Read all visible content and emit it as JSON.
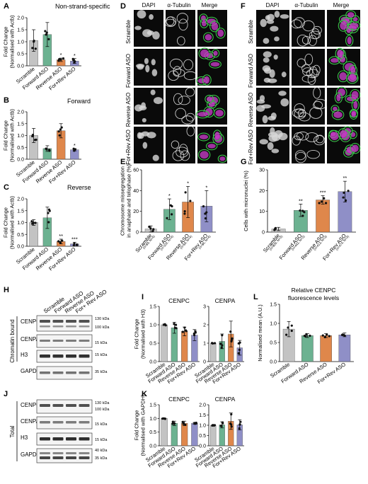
{
  "panels": {
    "A": {
      "letter": "A",
      "title": "Non-strand-specific",
      "ylabel": [
        "Fold Change",
        "(Normalised with Actb)"
      ],
      "yticks": [
        "0.0",
        "0.5",
        "1.0",
        "1.5",
        "2.0"
      ]
    },
    "B": {
      "letter": "B",
      "title": "Forward",
      "ylabel": [
        "Fold Change",
        "(Normalised with Actb)"
      ],
      "yticks": [
        "0.0",
        "0.5",
        "1.0",
        "1.5",
        "2.0"
      ]
    },
    "C": {
      "letter": "C",
      "title": "Reverse",
      "ylabel": [
        "Fold Change",
        "(Normalised with Actb)"
      ],
      "yticks": [
        "0.0",
        "0.5",
        "1.0",
        "1.5",
        "2.0"
      ]
    },
    "D": {
      "letter": "D",
      "cols": [
        "DAPI",
        "α-Tubulin",
        "Merge"
      ],
      "rows": [
        "Scramble",
        "Forward ASO",
        "Reverse ASO",
        "For+Rev ASO"
      ]
    },
    "E": {
      "letter": "E",
      "ylabel": [
        "Chromosome missegregation",
        "in anaphase and telophase (%)"
      ],
      "yticks": [
        "0",
        "20",
        "40",
        "60"
      ],
      "ns": [
        "(n=89, N=4)",
        "(n=102, N=4)",
        "(n=83, N=4)",
        "(n=86, N=4)"
      ]
    },
    "F": {
      "letter": "F",
      "cols": [
        "DAPI",
        "α-Tubulin",
        "Merge"
      ],
      "rows": [
        "Scramble",
        "Forward ASO",
        "Reverse ASO",
        "For+Rev ASO"
      ]
    },
    "G": {
      "letter": "G",
      "ylabel": [
        "Cells with micronuclei (%)"
      ],
      "yticks": [
        "0",
        "10",
        "20",
        "30"
      ],
      "ns": [
        "(n=805, N=3)",
        "(n=442, N=3)",
        "(n=413, N=3)",
        "(n=474, N=3)"
      ]
    },
    "H": {
      "letter": "H",
      "lanes": [
        "Scramble",
        "Forward ASO",
        "Reverse ASO",
        "For+ Rev ASO"
      ],
      "rowlabels": [
        "CENPC",
        "CENPA",
        "H3",
        "GAPDH"
      ],
      "group": "Chromatin bound",
      "kda": [
        "130 kDa",
        "100 kDa",
        "15 kDa",
        "15 kDa",
        "35 kDa"
      ]
    },
    "I": {
      "letter": "I",
      "ylabel": [
        "Fold Change",
        "(Normalised with H3)"
      ],
      "sub1": "CENPC",
      "sub2": "CENPA",
      "yticks1": [
        "0.0",
        "0.5",
        "1.0",
        "1.5"
      ],
      "yticks2": [
        "0",
        "1",
        "2",
        "3"
      ]
    },
    "J": {
      "letter": "J",
      "rowlabels": [
        "CENPC",
        "CENPA",
        "H3",
        "GAPDH"
      ],
      "group": "Total",
      "kda": [
        "130 kDa",
        "100 kDa",
        "15 kDa",
        "15 kDa",
        "40 kDa",
        "35 kDa"
      ]
    },
    "K": {
      "letter": "K",
      "ylabel": [
        "Fold Change",
        "(Normalised with GAPDH)"
      ],
      "sub1": "CENPC",
      "sub2": "CENPA",
      "yticks1": [
        "0.0",
        "0.5",
        "1.0",
        "1.5"
      ],
      "yticks2": [
        "0.0",
        "0.5",
        "1.0",
        "1.5",
        "2.0"
      ]
    },
    "L": {
      "letter": "L",
      "title": [
        "Relative CENPC",
        "fluorescence levels"
      ],
      "ylabel": [
        "Normalised mean (A.U.)"
      ],
      "yticks": [
        "0.0",
        "0.5",
        "1.0",
        "1.5"
      ]
    }
  },
  "categories": [
    "Scramble",
    "Forward ASO",
    "Reverse ASO",
    "For+Rev ASO"
  ],
  "sig": {
    "A": [
      "",
      "",
      "*",
      "*"
    ],
    "B": [
      "",
      "",
      "",
      "*"
    ],
    "C": [
      "",
      "",
      "**",
      "***"
    ],
    "E": [
      "",
      "*",
      "*",
      "*"
    ],
    "G": [
      "",
      "**",
      "***",
      "**"
    ]
  },
  "colors": {
    "scramble": "#b8b8b8",
    "forward": "#52a47e",
    "reverse": "#d9722b",
    "forrev": "#7b7bbd"
  },
  "chart_data": [
    {
      "id": "A",
      "type": "bar",
      "categories": [
        "Scramble",
        "Forward ASO",
        "Reverse ASO",
        "For+Rev ASO"
      ],
      "values": [
        1.05,
        1.3,
        0.25,
        0.2
      ],
      "errors": [
        0.45,
        0.5,
        0.07,
        0.1
      ],
      "ylim": [
        0,
        2.0
      ]
    },
    {
      "id": "B",
      "type": "bar",
      "categories": [
        "Scramble",
        "Forward ASO",
        "Reverse ASO",
        "For+Rev ASO"
      ],
      "values": [
        1.0,
        0.45,
        1.2,
        0.4
      ],
      "errors": [
        0.3,
        0.12,
        0.3,
        0.05
      ],
      "ylim": [
        0,
        2.0
      ]
    },
    {
      "id": "C",
      "type": "bar",
      "categories": [
        "Scramble",
        "Forward ASO",
        "Reverse ASO",
        "For+Rev ASO"
      ],
      "values": [
        1.0,
        1.2,
        0.2,
        0.1
      ],
      "errors": [
        0.12,
        0.45,
        0.1,
        0.07
      ],
      "ylim": [
        0,
        2.0
      ]
    },
    {
      "id": "E",
      "type": "bar",
      "categories": [
        "Scramble",
        "Forward ASO",
        "Reverse ASO",
        "For+Rev ASO"
      ],
      "values": [
        3,
        22,
        29,
        25
      ],
      "errors": [
        3,
        10,
        15,
        15
      ],
      "ylim": [
        0,
        60
      ]
    },
    {
      "id": "G",
      "type": "bar",
      "categories": [
        "Scramble",
        "Forward ASO",
        "Reverse ASO",
        "For+Rev ASO"
      ],
      "values": [
        1.5,
        10.5,
        15.5,
        19.5
      ],
      "errors": [
        0.8,
        3,
        2,
        5
      ],
      "ylim": [
        0,
        30
      ]
    },
    {
      "id": "I-CENPC",
      "type": "bar",
      "categories": [
        "Scramble",
        "Forward ASO",
        "Reverse ASO",
        "For+Rev ASO"
      ],
      "values": [
        1.0,
        0.92,
        0.82,
        0.72
      ],
      "errors": [
        0.02,
        0.15,
        0.12,
        0.15
      ],
      "ylim": [
        0,
        1.5
      ]
    },
    {
      "id": "I-CENPA",
      "type": "bar",
      "categories": [
        "Scramble",
        "Forward ASO",
        "Reverse ASO",
        "For+Rev ASO"
      ],
      "values": [
        1.0,
        1.1,
        1.5,
        0.75
      ],
      "errors": [
        0.02,
        0.4,
        0.7,
        0.4
      ],
      "ylim": [
        0,
        3
      ]
    },
    {
      "id": "K-CENPC",
      "type": "bar",
      "categories": [
        "Scramble",
        "Forward ASO",
        "Reverse ASO",
        "For+Rev ASO"
      ],
      "values": [
        1.0,
        0.82,
        0.82,
        0.82
      ],
      "errors": [
        0.02,
        0.08,
        0.08,
        0.03
      ],
      "ylim": [
        0,
        1.5
      ]
    },
    {
      "id": "K-CENPA",
      "type": "bar",
      "categories": [
        "Scramble",
        "Forward ASO",
        "Reverse ASO",
        "For+Rev ASO"
      ],
      "values": [
        1.0,
        1.02,
        1.2,
        1.02
      ],
      "errors": [
        0.02,
        0.15,
        0.4,
        0.25
      ],
      "ylim": [
        0,
        2.0
      ]
    },
    {
      "id": "L",
      "type": "bar",
      "categories": [
        "Scramble",
        "Forward ASO",
        "Reverse ASO",
        "For+Rev ASO"
      ],
      "values": [
        0.85,
        0.68,
        0.68,
        0.7
      ],
      "errors": [
        0.2,
        0.05,
        0.05,
        0.05
      ],
      "ylim": [
        0,
        1.5
      ]
    }
  ]
}
